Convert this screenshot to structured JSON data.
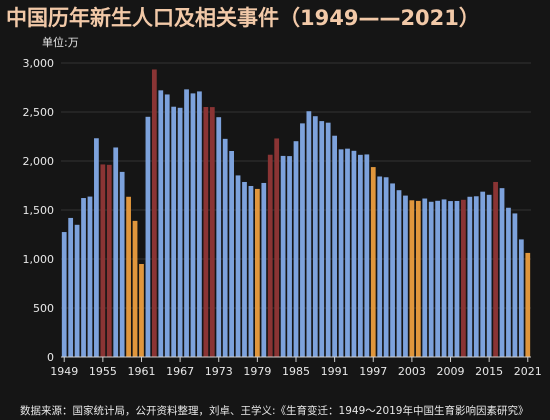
{
  "chart_data": {
    "type": "bar",
    "title": "中国历年新生人口及相关事件（1949——2021）",
    "unit_label": "单位:万",
    "ylim": [
      0,
      3000
    ],
    "y_ticks": [
      0,
      500,
      1000,
      1500,
      2000,
      2500,
      3000
    ],
    "y_tick_labels": [
      "0",
      "500",
      "1,000",
      "1,500",
      "2,000",
      "2,500",
      "3,000"
    ],
    "x_tick_labels": [
      "1949",
      "1955",
      "1961",
      "1967",
      "1973",
      "1979",
      "1985",
      "1991",
      "1997",
      "2003",
      "2009",
      "2015",
      "2021"
    ],
    "x": [
      1949,
      1950,
      1951,
      1952,
      1953,
      1954,
      1955,
      1956,
      1957,
      1958,
      1959,
      1960,
      1961,
      1962,
      1963,
      1964,
      1965,
      1966,
      1967,
      1968,
      1969,
      1970,
      1971,
      1972,
      1973,
      1974,
      1975,
      1976,
      1977,
      1978,
      1979,
      1980,
      1981,
      1982,
      1983,
      1984,
      1985,
      1986,
      1987,
      1988,
      1989,
      1990,
      1991,
      1992,
      1993,
      1994,
      1995,
      1996,
      1997,
      1998,
      1999,
      2000,
      2001,
      2002,
      2003,
      2004,
      2005,
      2006,
      2007,
      2008,
      2009,
      2010,
      2011,
      2012,
      2013,
      2014,
      2015,
      2016,
      2017,
      2018,
      2019,
      2020,
      2021
    ],
    "values": [
      1275,
      1419,
      1349,
      1622,
      1637,
      2232,
      1965,
      1961,
      2138,
      1889,
      1635,
      1389,
      949,
      2451,
      2934,
      2721,
      2679,
      2554,
      2543,
      2731,
      2690,
      2710,
      2551,
      2550,
      2447,
      2226,
      2102,
      1853,
      1786,
      1745,
      1715,
      1776,
      2064,
      2230,
      2052,
      2050,
      2202,
      2384,
      2508,
      2457,
      2407,
      2391,
      2258,
      2119,
      2126,
      2104,
      2063,
      2067,
      1938,
      1842,
      1834,
      1771,
      1702,
      1647,
      1599,
      1593,
      1617,
      1584,
      1594,
      1608,
      1591,
      1592,
      1604,
      1635,
      1640,
      1687,
      1655,
      1786,
      1723,
      1523,
      1465,
      1200,
      1062
    ],
    "colors": {
      "normal": "#7da2dc",
      "famine_or_event": "#8a3434",
      "economic_event": "#e0963c"
    },
    "bar_kinds": [
      "n",
      "n",
      "n",
      "n",
      "n",
      "n",
      "r",
      "r",
      "n",
      "n",
      "o",
      "o",
      "o",
      "n",
      "r",
      "n",
      "n",
      "n",
      "n",
      "n",
      "n",
      "n",
      "r",
      "r",
      "n",
      "n",
      "n",
      "n",
      "n",
      "n",
      "o",
      "n",
      "r",
      "r",
      "n",
      "n",
      "n",
      "n",
      "n",
      "n",
      "n",
      "n",
      "n",
      "n",
      "n",
      "n",
      "n",
      "n",
      "o",
      "n",
      "n",
      "n",
      "n",
      "n",
      "o",
      "o",
      "n",
      "n",
      "n",
      "n",
      "n",
      "n",
      "r",
      "n",
      "n",
      "n",
      "n",
      "r",
      "n",
      "n",
      "n",
      "n",
      "o"
    ]
  },
  "footer": {
    "source": "数据来源：国家统计局，公开资料整理，刘卓、王学义:《生育变迁：1949～2019年中国生育影响因素研究》"
  }
}
